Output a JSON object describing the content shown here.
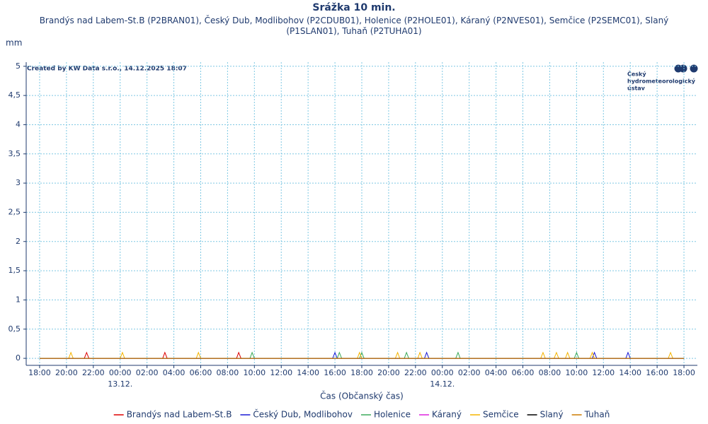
{
  "chart_data": {
    "type": "line",
    "title": "Srážka 10 min.",
    "subtitle": "Brandýs nad Labem-St.B (P2BRAN01), Český Dub, Modlibohov (P2CDUB01), Holenice (P2HOLE01), Káraný (P2NVES01), Semčice (P2SEMC01), Slaný (P1SLAN01), Tuhaň (P2TUHA01)",
    "y_label": "mm",
    "x_label": "Čas (Občanský čas)",
    "credit": "Created by KW Data s.r.o., 14.12.2025 18:07",
    "logo_text": [
      "Český",
      "hydrometeorologický",
      "ústav"
    ],
    "grid": true,
    "legend": "bottom",
    "xlim": [
      -1,
      49
    ],
    "ylim": [
      -0.12,
      5.07
    ],
    "yticks": [
      0,
      {
        "value": 0.5,
        "label": "0,5"
      },
      1,
      {
        "value": 1.5,
        "label": "1,5"
      },
      2,
      {
        "value": 2.5,
        "label": "2,5"
      },
      3,
      {
        "value": 3.5,
        "label": "3,5"
      },
      4,
      {
        "value": 4.5,
        "label": "4,5"
      },
      5
    ],
    "xticks": [
      {
        "value": 0,
        "label": "18:00"
      },
      {
        "value": 2,
        "label": "20:00"
      },
      {
        "value": 4,
        "label": "22:00"
      },
      {
        "value": 6,
        "label": "00:00"
      },
      {
        "value": 8,
        "label": "02:00"
      },
      {
        "value": 10,
        "label": "04:00"
      },
      {
        "value": 12,
        "label": "06:00"
      },
      {
        "value": 14,
        "label": "08:00"
      },
      {
        "value": 16,
        "label": "10:00"
      },
      {
        "value": 18,
        "label": "12:00"
      },
      {
        "value": 20,
        "label": "14:00"
      },
      {
        "value": 22,
        "label": "16:00"
      },
      {
        "value": 24,
        "label": "18:00"
      },
      {
        "value": 26,
        "label": "20:00"
      },
      {
        "value": 28,
        "label": "22:00"
      },
      {
        "value": 30,
        "label": "00:00"
      },
      {
        "value": 32,
        "label": "02:00"
      },
      {
        "value": 34,
        "label": "04:00"
      },
      {
        "value": 36,
        "label": "06:00"
      },
      {
        "value": 38,
        "label": "08:00"
      },
      {
        "value": 40,
        "label": "10:00"
      },
      {
        "value": 42,
        "label": "12:00"
      },
      {
        "value": 44,
        "label": "14:00"
      },
      {
        "value": 46,
        "label": "16:00"
      },
      {
        "value": 48,
        "label": "18:00"
      }
    ],
    "date_labels": [
      {
        "value": 6,
        "label": "13.12."
      },
      {
        "value": 30,
        "label": "14.12."
      }
    ],
    "series": [
      {
        "name": "Brandýs nad Labem-St.B",
        "color": "#dd0000",
        "x": [
          0,
          3.33,
          3.5,
          3.67,
          9.17,
          9.33,
          9.5,
          14.67,
          14.83,
          15,
          48
        ],
        "values": [
          0,
          0,
          0.1,
          0,
          0,
          0.1,
          0,
          0,
          0.1,
          0,
          0
        ]
      },
      {
        "name": "Český Dub, Modlibohov",
        "color": "#1a1ad6",
        "x": [
          0,
          21.83,
          22,
          22.17,
          28.67,
          28.83,
          29,
          41.17,
          41.33,
          41.5,
          43.67,
          43.83,
          44,
          48
        ],
        "values": [
          0,
          0,
          0.1,
          0,
          0,
          0.1,
          0,
          0,
          0.1,
          0,
          0,
          0.1,
          0,
          0
        ]
      },
      {
        "name": "Holenice",
        "color": "#3caa5a",
        "x": [
          0,
          15.67,
          15.83,
          16,
          22.17,
          22.33,
          22.5,
          23.83,
          24,
          24.17,
          27.17,
          27.33,
          27.5,
          31,
          31.17,
          31.33,
          39.83,
          40,
          40.17,
          48
        ],
        "values": [
          0,
          0,
          0.1,
          0,
          0,
          0.1,
          0,
          0,
          0.1,
          0,
          0,
          0.1,
          0,
          0,
          0.1,
          0,
          0,
          0.1,
          0,
          0
        ]
      },
      {
        "name": "Káraný",
        "color": "#dd22dd",
        "x": [
          0,
          48
        ],
        "values": [
          0,
          0
        ]
      },
      {
        "name": "Semčice",
        "color": "#f5b400",
        "x": [
          0,
          2.17,
          2.33,
          2.5,
          6,
          6.17,
          6.33,
          11.67,
          11.83,
          12,
          23.67,
          23.83,
          24,
          26.5,
          26.67,
          26.83,
          28.17,
          28.33,
          28.5,
          37.33,
          37.5,
          37.67,
          38.33,
          38.5,
          38.67,
          39.17,
          39.33,
          39.5,
          41,
          41.17,
          41.33,
          46.83,
          47,
          47.17,
          48
        ],
        "values": [
          0,
          0,
          0.1,
          0,
          0,
          0.1,
          0,
          0,
          0.1,
          0,
          0,
          0.1,
          0,
          0,
          0.1,
          0,
          0,
          0.1,
          0,
          0,
          0.1,
          0,
          0,
          0.1,
          0,
          0,
          0.1,
          0,
          0,
          0.1,
          0,
          0,
          0.1,
          0,
          0
        ]
      },
      {
        "name": "Slaný",
        "color": "#000000",
        "x": [
          0,
          48
        ],
        "values": [
          0,
          0
        ]
      },
      {
        "name": "Tuhaň",
        "color": "#cc7a00",
        "x": [
          0,
          48
        ],
        "values": [
          0,
          0
        ]
      }
    ]
  }
}
